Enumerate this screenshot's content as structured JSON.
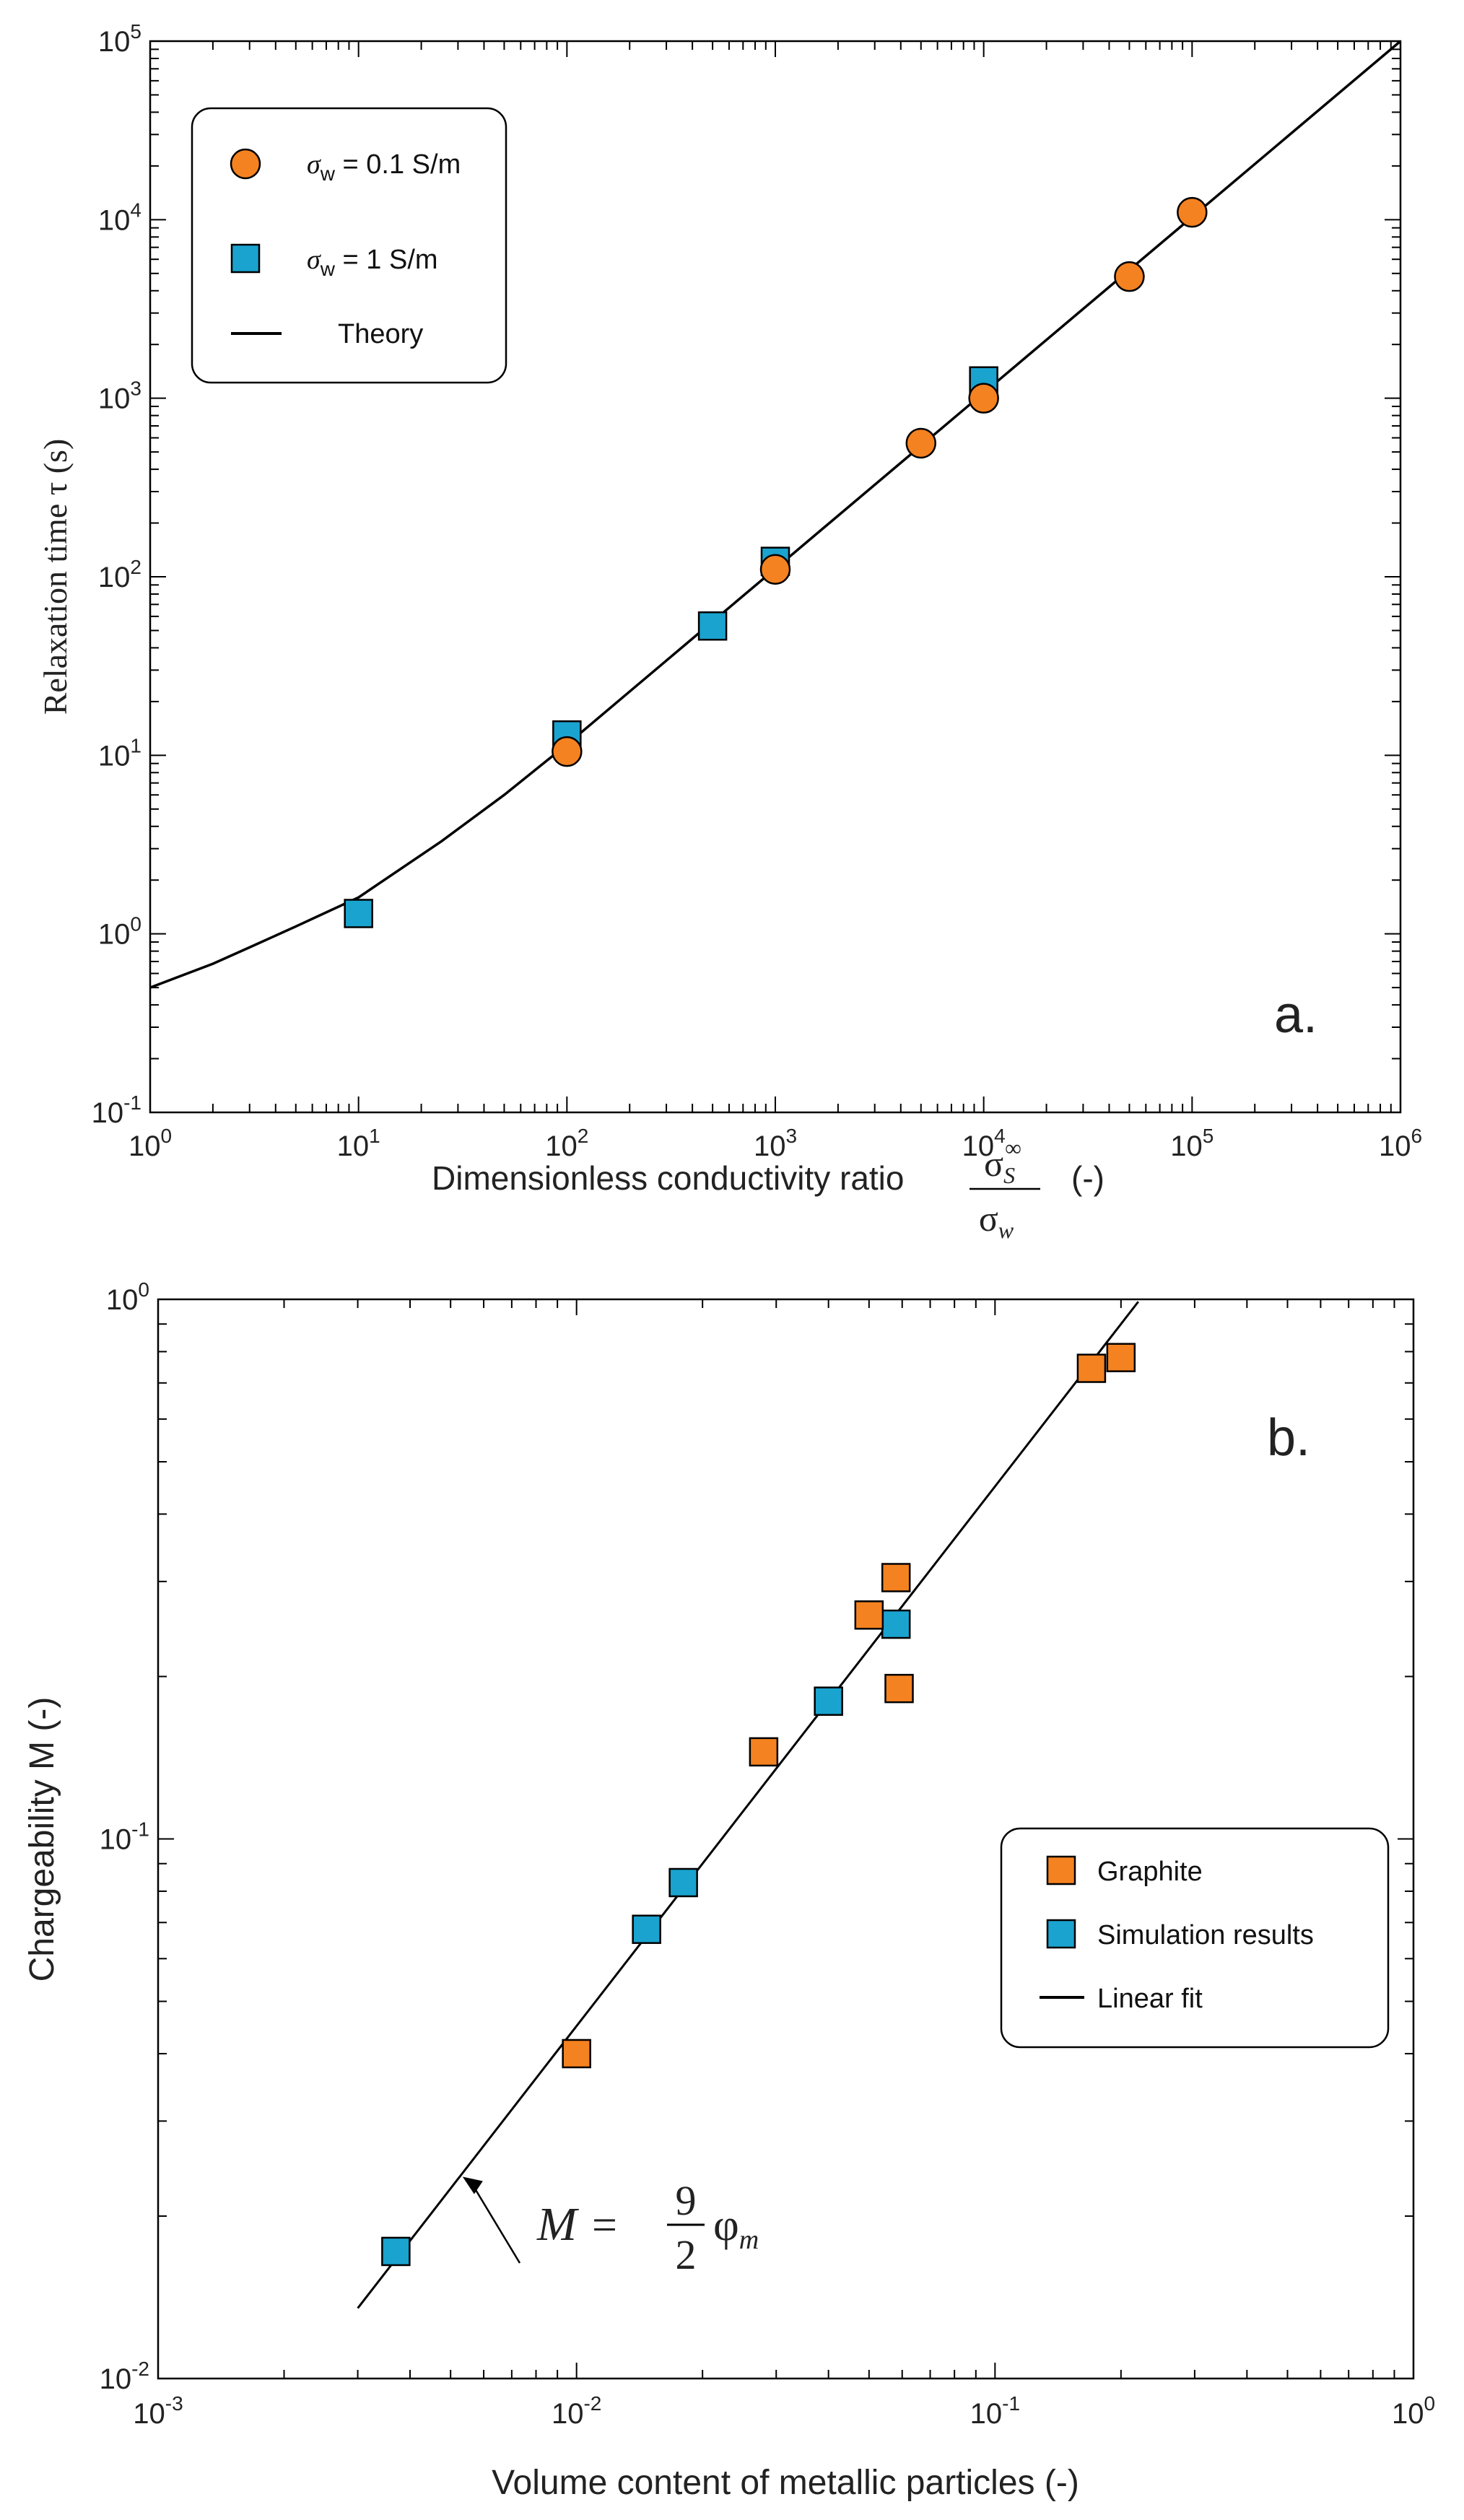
{
  "chart_data": [
    {
      "type": "scatter",
      "panel_label": "a.",
      "xlabel": "Dimensionless conductivity ratio",
      "xlabel_fraction": {
        "numerator": "σ",
        "numerator_sub": "S",
        "numerator_sup": "∞",
        "denominator": "σ",
        "denominator_sub": "w"
      },
      "xlabel_unit": "(-)",
      "ylabel": "Relaxation time τ (s)",
      "xscale": "log",
      "yscale": "log",
      "xlim": [
        1,
        1000000
      ],
      "ylim": [
        0.1,
        100000
      ],
      "x_ticks": [
        {
          "base": "10",
          "exp": "0",
          "value": 1
        },
        {
          "base": "10",
          "exp": "1",
          "value": 10
        },
        {
          "base": "10",
          "exp": "2",
          "value": 100
        },
        {
          "base": "10",
          "exp": "3",
          "value": 1000
        },
        {
          "base": "10",
          "exp": "4",
          "value": 10000
        },
        {
          "base": "10",
          "exp": "5",
          "value": 100000
        },
        {
          "base": "10",
          "exp": "6",
          "value": 1000000
        }
      ],
      "y_ticks": [
        {
          "base": "10",
          "exp": "-1",
          "value": 0.1
        },
        {
          "base": "10",
          "exp": "0",
          "value": 1
        },
        {
          "base": "10",
          "exp": "1",
          "value": 10
        },
        {
          "base": "10",
          "exp": "2",
          "value": 100
        },
        {
          "base": "10",
          "exp": "3",
          "value": 1000
        },
        {
          "base": "10",
          "exp": "4",
          "value": 10000
        },
        {
          "base": "10",
          "exp": "5",
          "value": 100000
        }
      ],
      "legend": {
        "placement": "top-left",
        "entries": [
          {
            "symbol": "σ",
            "subscript": "w",
            "rest": " = 0.1 S/m",
            "marker": "circle"
          },
          {
            "symbol": "σ",
            "subscript": "w",
            "rest": " = 1 S/m",
            "marker": "square"
          },
          {
            "label": "Theory",
            "marker": "line"
          }
        ]
      },
      "series": [
        {
          "name": "σw = 0.1 S/m",
          "marker": "circle",
          "color": "#F58220",
          "points": [
            [
              100,
              10.5
            ],
            [
              1000,
              110
            ],
            [
              5000,
              560
            ],
            [
              10000,
              1000
            ],
            [
              50000,
              4800
            ],
            [
              100000,
              11000
            ]
          ]
        },
        {
          "name": "σw = 1 S/m",
          "marker": "square",
          "color": "#1AA3CF",
          "points": [
            [
              10,
              1.3
            ],
            [
              100,
              13
            ],
            [
              500,
              53
            ],
            [
              1000,
              122
            ],
            [
              10000,
              1250
            ]
          ]
        },
        {
          "name": "Theory",
          "marker": "line",
          "color": "#000000",
          "points": [
            [
              1,
              0.5
            ],
            [
              2,
              0.68
            ],
            [
              3,
              0.84
            ],
            [
              5,
              1.1
            ],
            [
              10,
              1.6
            ],
            [
              25,
              3.3
            ],
            [
              50,
              6.0
            ],
            [
              100,
              11.5
            ],
            [
              1000,
              111
            ],
            [
              1000000,
              100000
            ]
          ]
        }
      ]
    },
    {
      "type": "scatter",
      "panel_label": "b.",
      "xlabel": "Volume content of metallic particles (-)",
      "ylabel": "Chargeability M (-)",
      "xscale": "log",
      "yscale": "log",
      "xlim": [
        0.001,
        1
      ],
      "ylim": [
        0.01,
        1
      ],
      "x_ticks": [
        {
          "base": "10",
          "exp": "-3",
          "value": 0.001
        },
        {
          "base": "10",
          "exp": "-2",
          "value": 0.01
        },
        {
          "base": "10",
          "exp": "-1",
          "value": 0.1
        },
        {
          "base": "10",
          "exp": "0",
          "value": 1
        }
      ],
      "y_ticks": [
        {
          "base": "10",
          "exp": "-2",
          "value": 0.01
        },
        {
          "base": "10",
          "exp": "-1",
          "value": 0.1
        },
        {
          "base": "10",
          "exp": "0",
          "value": 1
        }
      ],
      "legend": {
        "placement": "center-right",
        "entries": [
          {
            "label": "Graphite",
            "marker": "square"
          },
          {
            "label": "Simulation results",
            "marker": "square"
          },
          {
            "label": "Linear fit",
            "marker": "line"
          }
        ]
      },
      "annotation": {
        "lhs": "M",
        "eq": "=",
        "num": "9",
        "den": "2",
        "phi": "φ",
        "phi_sub": "m",
        "arrow_target": [
          0.0053,
          0.0238
        ]
      },
      "series": [
        {
          "name": "Graphite",
          "marker": "square",
          "color": "#F58220",
          "points": [
            [
              0.01,
              0.04
            ],
            [
              0.028,
              0.145
            ],
            [
              0.05,
              0.26
            ],
            [
              0.058,
              0.305
            ],
            [
              0.059,
              0.19
            ],
            [
              0.17,
              0.745
            ],
            [
              0.2,
              0.78
            ]
          ]
        },
        {
          "name": "Simulation results",
          "marker": "square",
          "color": "#1AA3CF",
          "points": [
            [
              0.0037,
              0.0172
            ],
            [
              0.0147,
              0.068
            ],
            [
              0.018,
              0.083
            ],
            [
              0.04,
              0.18
            ],
            [
              0.058,
              0.25
            ]
          ]
        },
        {
          "name": "Linear fit",
          "marker": "line",
          "color": "#000000",
          "points": [
            [
              0.003,
              0.0135
            ],
            [
              0.22,
              0.99
            ]
          ]
        }
      ]
    }
  ]
}
